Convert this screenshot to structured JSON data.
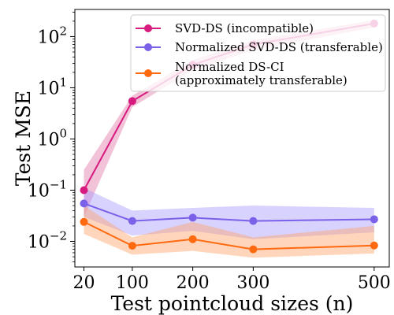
{
  "chart_data": {
    "type": "line",
    "xlabel": "Test pointcloud sizes (n)",
    "ylabel": "Test MSE",
    "yscale": "log",
    "xlim": [
      5,
      525
    ],
    "ylim_exponent": [
      -2.5,
      2.53
    ],
    "x": [
      20,
      100,
      200,
      300,
      500
    ],
    "x_tick_labels": [
      "20",
      "100",
      "200",
      "300",
      "500"
    ],
    "y_ticks": [
      {
        "exp": -2,
        "base": "10",
        "sup": "−2"
      },
      {
        "exp": -1,
        "base": "10",
        "sup": "−1"
      },
      {
        "exp": 0,
        "base": "10",
        "sup": "0"
      },
      {
        "exp": 1,
        "base": "10",
        "sup": "1"
      },
      {
        "exp": 2,
        "base": "10",
        "sup": "2"
      }
    ],
    "grid": false,
    "legend_position": "top-right",
    "series": [
      {
        "name": "SVD-DS (incompatible)",
        "label_lines": [
          "SVD-DS (incompatible)"
        ],
        "color": "#d81b7f",
        "band_color": "#e377a8",
        "values": [
          0.1,
          5.5,
          28,
          70,
          180
        ],
        "lower": [
          0.03,
          4.2,
          22,
          55,
          150
        ],
        "upper": [
          0.25,
          7.0,
          35,
          85,
          210
        ]
      },
      {
        "name": "Normalized SVD-DS (transferable)",
        "label_lines": [
          "Normalized SVD-DS (transferable)"
        ],
        "color": "#7b61e8",
        "band_color": "#a99bff",
        "values": [
          0.055,
          0.025,
          0.029,
          0.025,
          0.027
        ],
        "lower": [
          0.03,
          0.013,
          0.016,
          0.011,
          0.015
        ],
        "upper": [
          0.11,
          0.04,
          0.045,
          0.05,
          0.045
        ]
      },
      {
        "name": "Normalized DS-CI (approximately transferable)",
        "label_lines": [
          "Normalized DS-CI",
          "(approximately transferable)"
        ],
        "color": "#ff6a10",
        "band_color": "#ffa36b",
        "values": [
          0.024,
          0.0082,
          0.011,
          0.007,
          0.0083
        ],
        "lower": [
          0.014,
          0.0055,
          0.0065,
          0.0048,
          0.0058
        ],
        "upper": [
          0.05,
          0.012,
          0.024,
          0.012,
          0.02
        ]
      }
    ]
  }
}
